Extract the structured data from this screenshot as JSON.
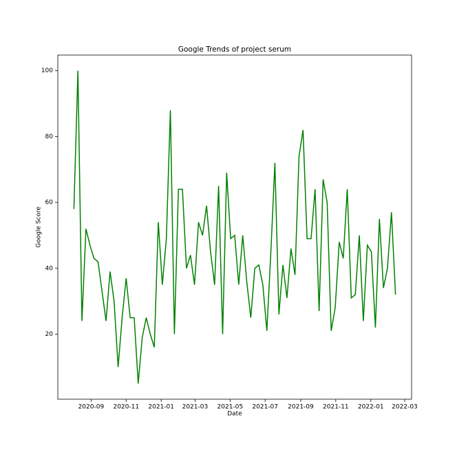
{
  "chart_data": {
    "type": "line",
    "title": "Google Trends of project serum",
    "x_label": "Date",
    "y_label": "Google Score",
    "x": [
      "2020-08-02",
      "2020-08-09",
      "2020-08-16",
      "2020-08-23",
      "2020-08-30",
      "2020-09-06",
      "2020-09-13",
      "2020-09-20",
      "2020-09-27",
      "2020-10-04",
      "2020-10-11",
      "2020-10-18",
      "2020-10-25",
      "2020-11-01",
      "2020-11-08",
      "2020-11-15",
      "2020-11-22",
      "2020-11-29",
      "2020-12-06",
      "2020-12-13",
      "2020-12-20",
      "2020-12-27",
      "2021-01-03",
      "2021-01-10",
      "2021-01-17",
      "2021-01-24",
      "2021-01-31",
      "2021-02-07",
      "2021-02-14",
      "2021-02-21",
      "2021-02-28",
      "2021-03-07",
      "2021-03-14",
      "2021-03-21",
      "2021-03-28",
      "2021-04-04",
      "2021-04-11",
      "2021-04-18",
      "2021-04-25",
      "2021-05-02",
      "2021-05-09",
      "2021-05-16",
      "2021-05-23",
      "2021-05-30",
      "2021-06-06",
      "2021-06-13",
      "2021-06-20",
      "2021-06-27",
      "2021-07-04",
      "2021-07-11",
      "2021-07-18",
      "2021-07-25",
      "2021-08-01",
      "2021-08-08",
      "2021-08-15",
      "2021-08-22",
      "2021-08-29",
      "2021-09-05",
      "2021-09-12",
      "2021-09-19",
      "2021-09-26",
      "2021-10-03",
      "2021-10-10",
      "2021-10-17",
      "2021-10-24",
      "2021-10-31",
      "2021-11-07",
      "2021-11-14",
      "2021-11-21",
      "2021-11-28",
      "2021-12-05",
      "2021-12-12",
      "2021-12-19",
      "2021-12-26",
      "2022-01-02",
      "2022-01-09",
      "2022-01-16",
      "2022-01-23",
      "2022-01-30",
      "2022-02-06",
      "2022-02-13"
    ],
    "series": [
      {
        "name": "Google Score",
        "color": "#008000",
        "values": [
          58,
          100,
          24,
          52,
          47,
          43,
          42,
          33,
          24,
          39,
          30,
          10,
          25,
          37,
          25,
          25,
          5,
          19,
          25,
          20,
          16,
          54,
          35,
          49,
          88,
          20,
          64,
          64,
          40,
          44,
          35,
          54,
          50,
          59,
          45,
          35,
          65,
          20,
          69,
          49,
          50,
          35,
          50,
          36,
          25,
          40,
          41,
          35,
          21,
          45,
          72,
          26,
          41,
          31,
          46,
          38,
          74,
          82,
          49,
          49,
          64,
          27,
          67,
          60,
          21,
          28,
          48,
          43,
          64,
          31,
          32,
          50,
          24,
          47,
          45,
          22,
          55,
          34,
          40,
          57,
          32
        ]
      }
    ],
    "xlim": [
      "2020-07-05",
      "2022-03-13"
    ],
    "xticks": [
      {
        "value": "2020-09-01",
        "label": "2020-09"
      },
      {
        "value": "2020-11-01",
        "label": "2020-11"
      },
      {
        "value": "2021-01-01",
        "label": "2021-01"
      },
      {
        "value": "2021-03-01",
        "label": "2021-03"
      },
      {
        "value": "2021-05-01",
        "label": "2021-05"
      },
      {
        "value": "2021-07-01",
        "label": "2021-07"
      },
      {
        "value": "2021-09-01",
        "label": "2021-09"
      },
      {
        "value": "2021-11-01",
        "label": "2021-11"
      },
      {
        "value": "2022-01-01",
        "label": "2022-01"
      },
      {
        "value": "2022-03-01",
        "label": "2022-03"
      }
    ],
    "ylim": [
      0.25,
      104.75
    ],
    "yticks": [
      20,
      40,
      60,
      80,
      100
    ],
    "grid": false
  }
}
